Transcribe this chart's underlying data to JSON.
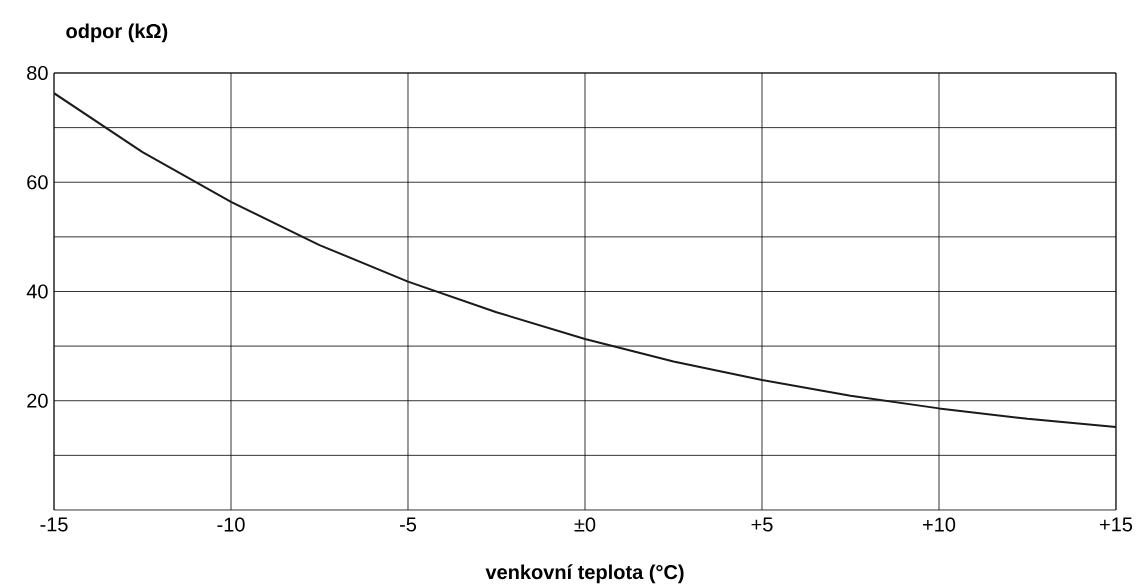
{
  "chart_data": {
    "type": "line",
    "xlabel": "venkovní teplota (°C)",
    "ylabel": "odpor (kΩ)",
    "x": [
      -15,
      -12.5,
      -10,
      -7.5,
      -5,
      -2.5,
      0,
      2.5,
      5,
      7.5,
      10,
      12.5,
      15
    ],
    "series": [
      {
        "color": "#1a1a1a",
        "values": [
          76.3,
          65.5,
          56.4,
          48.5,
          41.8,
          36.2,
          31.3,
          27.2,
          23.8,
          20.9,
          18.6,
          16.7,
          15.2
        ]
      }
    ],
    "xlim": [
      -15,
      15
    ],
    "xticks": [
      -15,
      -10,
      -5,
      {
        "value": 0,
        "label": "±0"
      },
      {
        "value": 5,
        "label": "+5"
      },
      {
        "value": 10,
        "label": "+10"
      },
      {
        "value": 15,
        "label": "+15"
      }
    ],
    "ylim": [
      0,
      80
    ],
    "yticks": [
      {
        "value": 10,
        "label": null
      },
      20,
      {
        "value": 30,
        "label": null
      },
      40,
      {
        "value": 50,
        "label": null
      },
      60,
      {
        "value": 70,
        "label": null
      },
      80
    ],
    "grid": true,
    "marker": "none",
    "line_style": "solid"
  }
}
